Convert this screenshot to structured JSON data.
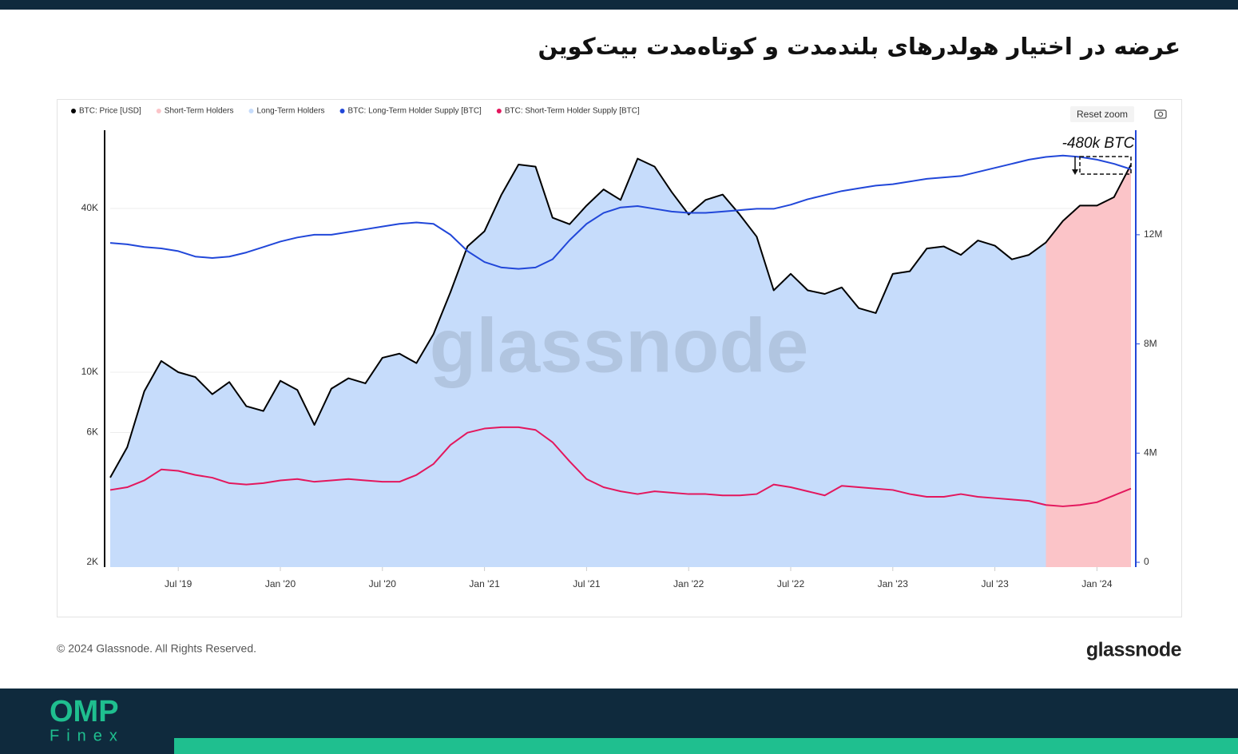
{
  "chart_data": {
    "type": "line",
    "title": "عرضه در اختیار هولدرهای بلندمدت و کوتاه‌مدت بیت‌کوین",
    "watermark": "glassnode",
    "annotation": "-480k BTC",
    "log_scale": true,
    "grid": true,
    "legend": "top-left",
    "x": [
      "2019-03",
      "2019-04",
      "2019-05",
      "2019-06",
      "2019-07",
      "2019-08",
      "2019-09",
      "2019-10",
      "2019-11",
      "2019-12",
      "2020-01",
      "2020-02",
      "2020-03",
      "2020-04",
      "2020-05",
      "2020-06",
      "2020-07",
      "2020-08",
      "2020-09",
      "2020-10",
      "2020-11",
      "2020-12",
      "2021-01",
      "2021-02",
      "2021-03",
      "2021-04",
      "2021-05",
      "2021-06",
      "2021-07",
      "2021-08",
      "2021-09",
      "2021-10",
      "2021-11",
      "2021-12",
      "2022-01",
      "2022-02",
      "2022-03",
      "2022-04",
      "2022-05",
      "2022-06",
      "2022-07",
      "2022-08",
      "2022-09",
      "2022-10",
      "2022-11",
      "2022-12",
      "2023-01",
      "2023-02",
      "2023-03",
      "2023-04",
      "2023-05",
      "2023-06",
      "2023-07",
      "2023-08",
      "2023-09",
      "2023-10",
      "2023-11",
      "2023-12",
      "2024-01",
      "2024-02",
      "2024-03"
    ],
    "xlim": [
      "2019-03",
      "2024-03"
    ],
    "xticks": [
      {
        "value": "2019-07",
        "label": "Jul '19"
      },
      {
        "value": "2020-01",
        "label": "Jan '20"
      },
      {
        "value": "2020-07",
        "label": "Jul '20"
      },
      {
        "value": "2021-01",
        "label": "Jan '21"
      },
      {
        "value": "2021-07",
        "label": "Jul '21"
      },
      {
        "value": "2022-01",
        "label": "Jan '22"
      },
      {
        "value": "2022-07",
        "label": "Jul '22"
      },
      {
        "value": "2023-01",
        "label": "Jan '23"
      },
      {
        "value": "2023-07",
        "label": "Jul '23"
      },
      {
        "value": "2024-01",
        "label": "Jan '24"
      }
    ],
    "ylim": [
      2000,
      77600
    ],
    "yticks": [
      {
        "value": 2000,
        "label": "2K"
      },
      {
        "value": 6000,
        "label": "6K"
      },
      {
        "value": 10000,
        "label": "10K"
      },
      {
        "value": 40000,
        "label": "40K"
      }
    ],
    "y2lim": [
      0,
      15830000
    ],
    "y2ticks": [
      0,
      {
        "value": 4000000,
        "label": "4M"
      },
      {
        "value": 8000000,
        "label": "8M"
      },
      {
        "value": 12000000,
        "label": "12M"
      }
    ],
    "series": [
      {
        "name": "BTC: Price [USD]",
        "color": "#000000",
        "values": [
          4100,
          5300,
          8500,
          11000,
          10000,
          9600,
          8300,
          9200,
          7500,
          7200,
          9300,
          8600,
          6400,
          8700,
          9500,
          9100,
          11300,
          11700,
          10800,
          13800,
          19700,
          29000,
          33000,
          45000,
          58000,
          57000,
          37000,
          35000,
          41000,
          47000,
          43000,
          61000,
          57000,
          46000,
          38000,
          43000,
          45000,
          38000,
          31500,
          20000,
          23000,
          20000,
          19400,
          20500,
          17200,
          16500,
          23000,
          23500,
          28500,
          29000,
          27000,
          30500,
          29200,
          26000,
          27000,
          30000,
          36000,
          41000,
          41000,
          44000,
          58000
        ]
      },
      {
        "name": "Short-Term Holders",
        "color": "#fbc4c8",
        "span": [
          "2023-10",
          "2024-03"
        ]
      },
      {
        "name": "Long-Term Holders",
        "color": "#c6dcfb",
        "span": [
          "2019-03",
          "2023-10"
        ]
      },
      {
        "name": "BTC: Long-Term Holder Supply [BTC]",
        "color": "#2147d9",
        "axis": "y2",
        "values": [
          11700000,
          11650000,
          11550000,
          11500000,
          11400000,
          11200000,
          11150000,
          11200000,
          11350000,
          11550000,
          11750000,
          11900000,
          12000000,
          12000000,
          12100000,
          12200000,
          12300000,
          12400000,
          12450000,
          12400000,
          12000000,
          11400000,
          11000000,
          10800000,
          10750000,
          10800000,
          11100000,
          11800000,
          12400000,
          12800000,
          13000000,
          13050000,
          12950000,
          12850000,
          12800000,
          12800000,
          12850000,
          12900000,
          12950000,
          12950000,
          13100000,
          13300000,
          13450000,
          13600000,
          13700000,
          13800000,
          13850000,
          13950000,
          14050000,
          14100000,
          14150000,
          14300000,
          14450000,
          14600000,
          14750000,
          14850000,
          14900000,
          14850000,
          14750000,
          14600000,
          14400000
        ]
      },
      {
        "name": "BTC: Short-Term Holder Supply [BTC]",
        "color": "#e3175d",
        "axis": "y2",
        "values": [
          2650000,
          2750000,
          3000000,
          3400000,
          3350000,
          3200000,
          3100000,
          2900000,
          2850000,
          2900000,
          3000000,
          3050000,
          2950000,
          3000000,
          3050000,
          3000000,
          2950000,
          2950000,
          3200000,
          3600000,
          4300000,
          4750000,
          4900000,
          4950000,
          4950000,
          4850000,
          4400000,
          3700000,
          3050000,
          2750000,
          2600000,
          2500000,
          2600000,
          2550000,
          2500000,
          2500000,
          2450000,
          2450000,
          2500000,
          2850000,
          2750000,
          2600000,
          2450000,
          2800000,
          2750000,
          2700000,
          2650000,
          2500000,
          2400000,
          2400000,
          2500000,
          2400000,
          2350000,
          2300000,
          2250000,
          2100000,
          2050000,
          2100000,
          2200000,
          2450000,
          2700000
        ]
      }
    ]
  },
  "controls": {
    "reset_zoom": "Reset zoom"
  },
  "footer": {
    "copyright": "© 2024 Glassnode. All Rights Reserved.",
    "logo": "glassnode"
  },
  "brand": {
    "name": "OMP",
    "sub": "Finex"
  }
}
